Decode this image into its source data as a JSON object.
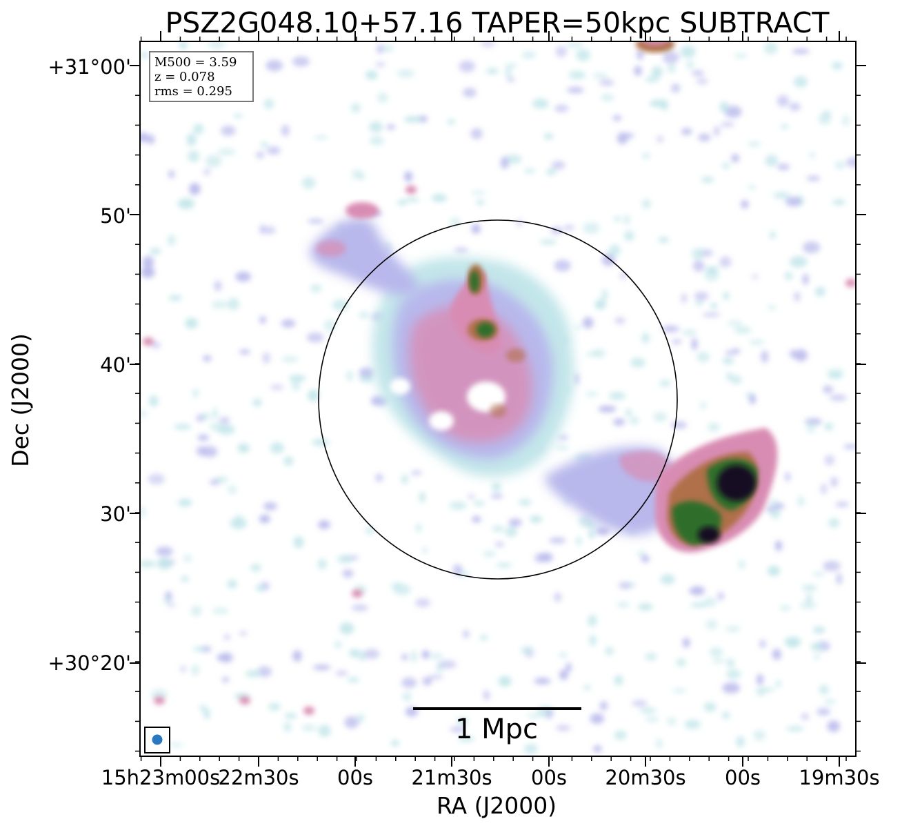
{
  "title": "PSZ2G048.10+57.16 TAPER=50kpc SUBTRACT",
  "axes": {
    "xlabel": "RA (J2000)",
    "ylabel": "Dec (J2000)",
    "x_ticks": [
      "15h23m00s",
      "22m30s",
      "00s",
      "21m30s",
      "00s",
      "20m30s",
      "00s",
      "19m30s"
    ],
    "y_ticks": [
      "+31°00'",
      "50'",
      "40'",
      "30'",
      "+30°20'"
    ]
  },
  "info_box": {
    "m500": "M500 = 3.59",
    "z": "z = 0.078",
    "rms": "rms = 0.295"
  },
  "scale_bar": {
    "label": "1 Mpc"
  },
  "colors": {
    "low": "#c3e6ea",
    "mid_low": "#b8b8ec",
    "mid": "#d98cb3",
    "mid_high": "#b0704a",
    "high": "#2f6e2a",
    "peak": "#120f22",
    "beam": "#2a78c0"
  }
}
